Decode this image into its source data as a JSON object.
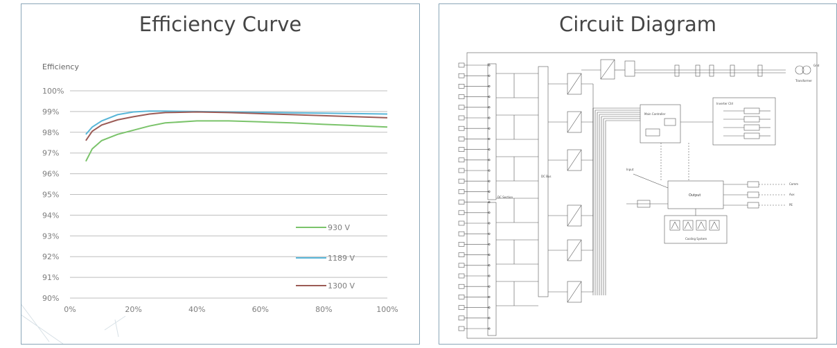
{
  "efficiency_panel": {
    "title": "Efficiency Curve"
  },
  "circuit_panel": {
    "title": "Circuit Diagram"
  },
  "colors": {
    "panel_border": "#8aa6b8",
    "grid": "#bdbdbd",
    "text": "#454545"
  },
  "chart_data": {
    "type": "line",
    "title": "Efficiency Curve",
    "ylabel": "Efficiency",
    "xlabel": "",
    "xlim": [
      0,
      100
    ],
    "ylim": [
      90,
      100
    ],
    "x_ticks": [
      "0%",
      "20%",
      "40%",
      "60%",
      "80%",
      "100%"
    ],
    "y_ticks": [
      "100%",
      "99%",
      "98%",
      "97%",
      "96%",
      "95%",
      "94%",
      "93%",
      "92%",
      "91%",
      "90%"
    ],
    "grid": true,
    "legend_position": "bottom-right",
    "series": [
      {
        "name": "930 V",
        "color": "#7ac36a",
        "x": [
          5,
          7,
          10,
          15,
          20,
          25,
          30,
          40,
          50,
          60,
          70,
          80,
          90,
          100
        ],
        "y": [
          96.6,
          97.2,
          97.6,
          97.9,
          98.1,
          98.3,
          98.45,
          98.55,
          98.55,
          98.5,
          98.45,
          98.38,
          98.32,
          98.25
        ]
      },
      {
        "name": "1189 V",
        "color": "#58b6d8",
        "x": [
          5,
          7,
          10,
          15,
          20,
          25,
          30,
          40,
          50,
          60,
          70,
          80,
          90,
          100
        ],
        "y": [
          97.9,
          98.25,
          98.55,
          98.85,
          98.98,
          99.02,
          99.02,
          99.0,
          98.98,
          98.96,
          98.94,
          98.92,
          98.9,
          98.88
        ]
      },
      {
        "name": "1300 V",
        "color": "#9b5a55",
        "x": [
          5,
          7,
          10,
          15,
          20,
          25,
          30,
          40,
          50,
          60,
          70,
          80,
          90,
          100
        ],
        "y": [
          97.6,
          98.05,
          98.35,
          98.6,
          98.75,
          98.88,
          98.95,
          98.98,
          98.95,
          98.9,
          98.85,
          98.8,
          98.75,
          98.7
        ]
      }
    ]
  },
  "diagram": {
    "labels": {
      "main_controller": "Main Controller",
      "inverter_ctrl": "Inverter Ctrl",
      "dc_section": "DC Section",
      "cooling": "Cooling System",
      "output": "Output",
      "input": "Input",
      "grid": "Grid",
      "transformer": "Transformer",
      "dc_bus": "DC Bus"
    },
    "side_items": [
      "Comm",
      "Aux",
      "PE"
    ]
  }
}
